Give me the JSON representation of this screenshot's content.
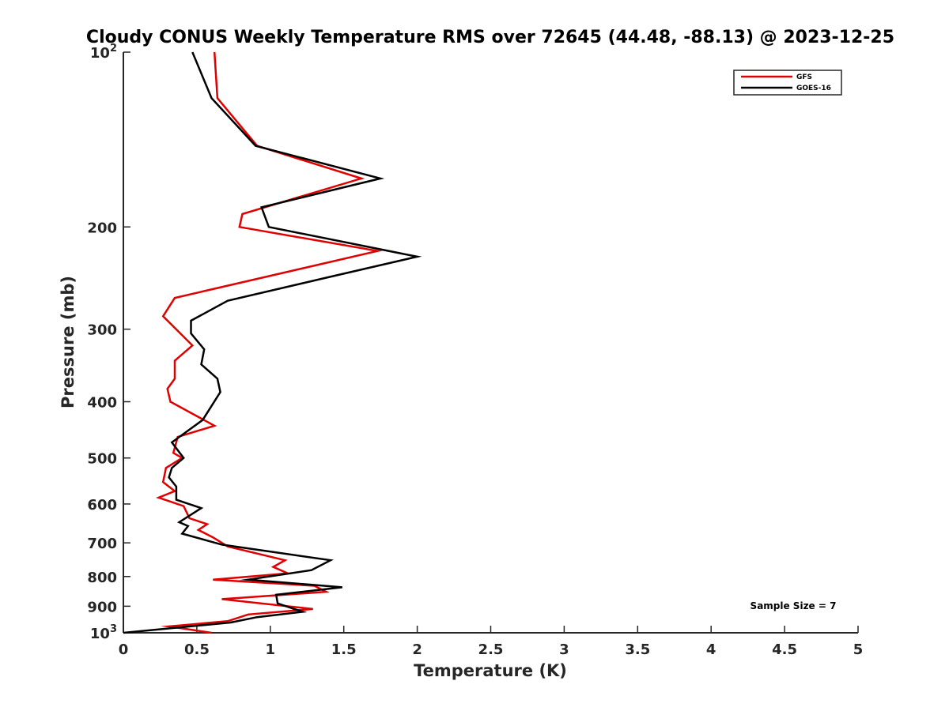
{
  "chart_data": {
    "type": "line",
    "title": "Cloudy CONUS Weekly Temperature RMS over 72645 (44.48, -88.13) @ 2023-12-25",
    "xlabel": "Temperature (K)",
    "ylabel": "Pressure (mb)",
    "xlim": [
      0,
      5
    ],
    "ylim": [
      100,
      1000
    ],
    "y_scale": "log",
    "y_reversed": true,
    "x_ticks": [
      0,
      0.5,
      1,
      1.5,
      2,
      2.5,
      3,
      3.5,
      4,
      4.5,
      5
    ],
    "x_tick_labels": [
      "0",
      "0.5",
      "1",
      "1.5",
      "2",
      "2.5",
      "3",
      "3.5",
      "4",
      "4.5",
      "5"
    ],
    "y_ticks": [
      100,
      200,
      300,
      400,
      500,
      600,
      700,
      800,
      900,
      1000
    ],
    "y_tick_labels": [
      {
        "base": "10",
        "sup": "2"
      },
      {
        "base": "200",
        "sup": ""
      },
      {
        "base": "300",
        "sup": ""
      },
      {
        "base": "400",
        "sup": ""
      },
      {
        "base": "500",
        "sup": ""
      },
      {
        "base": "600",
        "sup": ""
      },
      {
        "base": "700",
        "sup": ""
      },
      {
        "base": "800",
        "sup": ""
      },
      {
        "base": "900",
        "sup": ""
      },
      {
        "base": "10",
        "sup": "3"
      }
    ],
    "grid": false,
    "legend_position": "top-right",
    "annotation": "Sample Size = 7",
    "series": [
      {
        "name": "GFS",
        "color": "#e00000",
        "points": [
          [
            0.62,
            100
          ],
          [
            0.64,
            120
          ],
          [
            0.91,
            145
          ],
          [
            1.62,
            165
          ],
          [
            0.81,
            190
          ],
          [
            0.79,
            200
          ],
          [
            1.73,
            220
          ],
          [
            0.35,
            265
          ],
          [
            0.27,
            285
          ],
          [
            0.47,
            320
          ],
          [
            0.35,
            340
          ],
          [
            0.35,
            365
          ],
          [
            0.3,
            380
          ],
          [
            0.32,
            400
          ],
          [
            0.62,
            440
          ],
          [
            0.37,
            460
          ],
          [
            0.34,
            490
          ],
          [
            0.4,
            500
          ],
          [
            0.29,
            520
          ],
          [
            0.27,
            550
          ],
          [
            0.35,
            570
          ],
          [
            0.24,
            585
          ],
          [
            0.41,
            605
          ],
          [
            0.45,
            635
          ],
          [
            0.57,
            650
          ],
          [
            0.51,
            665
          ],
          [
            0.61,
            685
          ],
          [
            0.71,
            710
          ],
          [
            1.1,
            750
          ],
          [
            1.02,
            770
          ],
          [
            1.12,
            790
          ],
          [
            0.61,
            810
          ],
          [
            1.3,
            830
          ],
          [
            1.38,
            850
          ],
          [
            0.67,
            875
          ],
          [
            1.29,
            910
          ],
          [
            0.85,
            930
          ],
          [
            0.71,
            955
          ],
          [
            0.31,
            975
          ],
          [
            0.6,
            1000
          ]
        ]
      },
      {
        "name": "GOES-16",
        "color": "#000000",
        "points": [
          [
            0.47,
            100
          ],
          [
            0.6,
            120
          ],
          [
            0.9,
            145
          ],
          [
            1.75,
            165
          ],
          [
            0.94,
            185
          ],
          [
            0.99,
            200
          ],
          [
            2.0,
            225
          ],
          [
            1.37,
            245
          ],
          [
            0.71,
            268
          ],
          [
            0.46,
            290
          ],
          [
            0.46,
            305
          ],
          [
            0.55,
            325
          ],
          [
            0.53,
            345
          ],
          [
            0.64,
            365
          ],
          [
            0.66,
            385
          ],
          [
            0.54,
            430
          ],
          [
            0.33,
            470
          ],
          [
            0.41,
            500
          ],
          [
            0.33,
            520
          ],
          [
            0.31,
            540
          ],
          [
            0.36,
            560
          ],
          [
            0.36,
            590
          ],
          [
            0.53,
            610
          ],
          [
            0.38,
            645
          ],
          [
            0.44,
            655
          ],
          [
            0.4,
            675
          ],
          [
            0.67,
            705
          ],
          [
            1.41,
            750
          ],
          [
            1.28,
            780
          ],
          [
            0.85,
            810
          ],
          [
            1.49,
            835
          ],
          [
            1.04,
            860
          ],
          [
            1.05,
            890
          ],
          [
            1.22,
            920
          ],
          [
            0.91,
            940
          ],
          [
            0.73,
            960
          ],
          [
            0.0,
            1000
          ]
        ]
      }
    ]
  }
}
